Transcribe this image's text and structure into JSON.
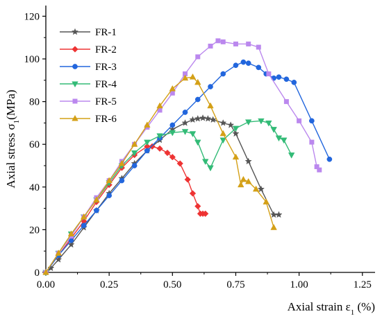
{
  "chart_data": {
    "type": "line",
    "title": "",
    "xlabel": {
      "prefix": "Axial strain ε",
      "subscript": "1",
      "suffix": " (%)"
    },
    "ylabel": {
      "prefix": "Axial stress  σ",
      "subscript": "1",
      "suffix": "(MPa)"
    },
    "xlim": [
      0,
      1.3
    ],
    "ylim": [
      0,
      125
    ],
    "xticks": [
      "0.00",
      "0.25",
      "0.50",
      "0.75",
      "1.00",
      "1.25"
    ],
    "yticks": [
      "0",
      "20",
      "40",
      "60",
      "80",
      "100",
      "120"
    ],
    "xtick_values": [
      0,
      0.25,
      0.5,
      0.75,
      1.0,
      1.25
    ],
    "ytick_values": [
      0,
      20,
      40,
      60,
      80,
      100,
      120
    ],
    "grid": false,
    "legend_position": "top-left",
    "series": [
      {
        "name": "FR-1",
        "color": "#555555",
        "marker": "star",
        "x": [
          0.0,
          0.02,
          0.05,
          0.1,
          0.15,
          0.2,
          0.25,
          0.3,
          0.35,
          0.4,
          0.45,
          0.5,
          0.55,
          0.58,
          0.6,
          0.62,
          0.64,
          0.66,
          0.7,
          0.73,
          0.75,
          0.8,
          0.85,
          0.9,
          0.92
        ],
        "y": [
          0,
          2,
          6,
          13,
          21,
          29,
          37,
          44,
          51,
          57,
          62,
          67,
          70,
          71.5,
          72,
          72.3,
          72,
          71.5,
          70,
          69,
          65,
          52,
          39,
          27,
          27
        ]
      },
      {
        "name": "FR-2",
        "color": "#ee3333",
        "marker": "diamond",
        "x": [
          0.0,
          0.05,
          0.1,
          0.15,
          0.2,
          0.25,
          0.3,
          0.35,
          0.4,
          0.42,
          0.45,
          0.48,
          0.5,
          0.53,
          0.56,
          0.58,
          0.6,
          0.61,
          0.62,
          0.63
        ],
        "y": [
          0,
          8,
          16,
          24,
          33,
          41,
          49,
          55,
          59,
          59,
          58,
          56,
          54,
          51,
          43.5,
          37,
          31,
          27.5,
          27.5,
          27.5
        ]
      },
      {
        "name": "FR-3",
        "color": "#2266dd",
        "marker": "circle",
        "x": [
          0.0,
          0.05,
          0.1,
          0.15,
          0.2,
          0.25,
          0.3,
          0.35,
          0.4,
          0.45,
          0.5,
          0.55,
          0.6,
          0.65,
          0.7,
          0.75,
          0.78,
          0.8,
          0.84,
          0.87,
          0.9,
          0.92,
          0.95,
          0.98,
          1.05,
          1.12
        ],
        "y": [
          0,
          8,
          15,
          22,
          29,
          36,
          43,
          50,
          57,
          63,
          69,
          75,
          81,
          87,
          93,
          97,
          98.5,
          98,
          96,
          93,
          91,
          91.5,
          90.5,
          89,
          71,
          53
        ]
      },
      {
        "name": "FR-4",
        "color": "#33bb77",
        "marker": "triangle-down",
        "x": [
          0.0,
          0.05,
          0.1,
          0.15,
          0.2,
          0.25,
          0.3,
          0.35,
          0.4,
          0.45,
          0.5,
          0.55,
          0.58,
          0.6,
          0.63,
          0.65,
          0.7,
          0.75,
          0.8,
          0.85,
          0.88,
          0.9,
          0.92,
          0.94,
          0.97
        ],
        "y": [
          0,
          9,
          18,
          26,
          34,
          42,
          50,
          56,
          61,
          64,
          65.5,
          66,
          65,
          61,
          52,
          49,
          62,
          67.5,
          70.5,
          71,
          70,
          67,
          63,
          62,
          55
        ]
      },
      {
        "name": "FR-5",
        "color": "#bb88ee",
        "marker": "square",
        "x": [
          0.0,
          0.05,
          0.1,
          0.15,
          0.2,
          0.25,
          0.3,
          0.35,
          0.4,
          0.45,
          0.5,
          0.55,
          0.6,
          0.65,
          0.68,
          0.7,
          0.75,
          0.8,
          0.84,
          0.88,
          0.95,
          1.0,
          1.05,
          1.07,
          1.08
        ],
        "y": [
          0,
          9,
          17,
          26,
          35,
          43,
          52,
          60,
          68,
          76,
          84,
          93,
          101,
          106,
          108.5,
          108,
          107,
          107,
          105.5,
          93,
          80,
          71,
          61,
          49.5,
          48
        ]
      },
      {
        "name": "FR-6",
        "color": "#d4a017",
        "marker": "triangle-up",
        "x": [
          0.0,
          0.05,
          0.1,
          0.15,
          0.2,
          0.25,
          0.3,
          0.35,
          0.4,
          0.45,
          0.5,
          0.55,
          0.58,
          0.6,
          0.65,
          0.7,
          0.75,
          0.77,
          0.78,
          0.8,
          0.83,
          0.87,
          0.9
        ],
        "y": [
          0,
          9,
          18,
          26,
          34,
          43,
          51,
          60,
          69,
          78,
          86,
          91,
          91.5,
          89,
          78,
          65,
          54,
          41,
          43.5,
          42.5,
          39,
          33,
          21
        ]
      }
    ]
  }
}
